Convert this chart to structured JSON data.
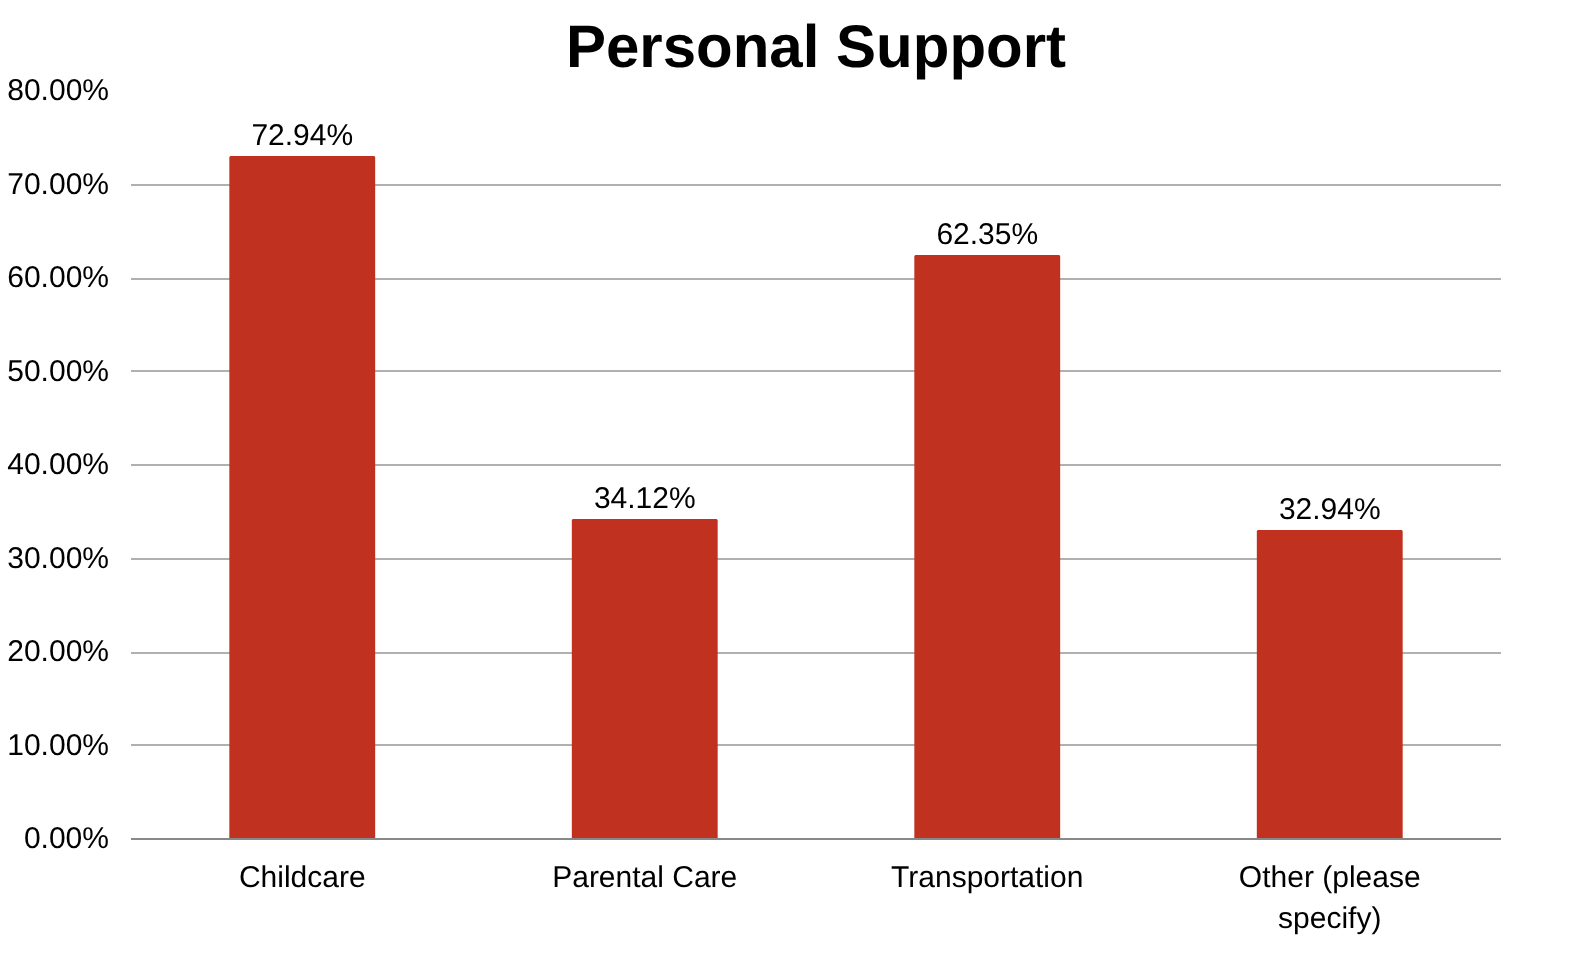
{
  "chart_data": {
    "type": "bar",
    "title": "Personal Support",
    "categories": [
      "Childcare",
      "Parental Care",
      "Transportation",
      "Other (please specify)"
    ],
    "values": [
      72.94,
      34.12,
      62.35,
      32.94
    ],
    "value_labels": [
      "72.94%",
      "34.12%",
      "62.35%",
      "32.94%"
    ],
    "color": "#c0311f",
    "ylim": [
      0,
      80
    ],
    "yticks": [
      {
        "value": 0,
        "label": "0.00%"
      },
      {
        "value": 10,
        "label": "10.00%"
      },
      {
        "value": 20,
        "label": "20.00%"
      },
      {
        "value": 30,
        "label": "30.00%"
      },
      {
        "value": 40,
        "label": "40.00%"
      },
      {
        "value": 50,
        "label": "50.00%"
      },
      {
        "value": 60,
        "label": "60.00%"
      },
      {
        "value": 70,
        "label": "70.00%"
      },
      {
        "value": 80,
        "label": "80.00%"
      }
    ],
    "grid": "y"
  }
}
